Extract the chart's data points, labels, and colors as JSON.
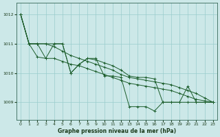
{
  "bg_color": "#cce8e8",
  "grid_color": "#99cccc",
  "line_color": "#1a5c2a",
  "xlabel": "Graphe pression niveau de la mer (hPa)",
  "yticks": [
    1009,
    1010,
    1011,
    1012
  ],
  "xticks": [
    0,
    1,
    2,
    3,
    4,
    5,
    6,
    7,
    8,
    9,
    10,
    11,
    12,
    13,
    14,
    15,
    16,
    17,
    18,
    19,
    20,
    21,
    22,
    23
  ],
  "xlim": [
    -0.5,
    23.5
  ],
  "ylim": [
    1008.4,
    1012.4
  ],
  "s1": [
    1012.0,
    1011.0,
    1011.0,
    1010.5,
    1011.0,
    1011.0,
    1010.0,
    1010.3,
    1010.5,
    1010.5,
    1009.9,
    1009.9,
    1009.85,
    1008.85,
    1008.85,
    1008.85,
    1008.7,
    1009.0,
    1009.0,
    1009.0,
    1009.55,
    1009.0,
    1009.0,
    1009.0
  ],
  "s2": [
    1012.0,
    1011.0,
    1010.55,
    1010.5,
    1010.5,
    1010.4,
    1010.3,
    1010.25,
    1010.15,
    1010.05,
    1009.95,
    1009.85,
    1009.75,
    1009.65,
    1009.6,
    1009.55,
    1009.5,
    1009.45,
    1009.4,
    1009.3,
    1009.2,
    1009.1,
    1009.05,
    1009.0
  ],
  "s3": [
    1012.0,
    1011.0,
    1011.0,
    1011.0,
    1010.9,
    1010.75,
    1010.6,
    1010.5,
    1010.4,
    1010.3,
    1010.2,
    1010.1,
    1009.95,
    1009.85,
    1009.8,
    1009.75,
    1009.7,
    1009.65,
    1009.6,
    1009.5,
    1009.4,
    1009.3,
    1009.15,
    1009.0
  ],
  "s4": [
    1012.0,
    1011.0,
    1011.0,
    1011.0,
    1011.0,
    1011.0,
    1010.0,
    1010.3,
    1010.5,
    1010.45,
    1010.35,
    1010.25,
    1010.1,
    1009.9,
    1009.85,
    1009.85,
    1009.8,
    1009.0,
    1009.0,
    1009.0,
    1009.0,
    1009.0,
    1009.0,
    1009.0
  ]
}
